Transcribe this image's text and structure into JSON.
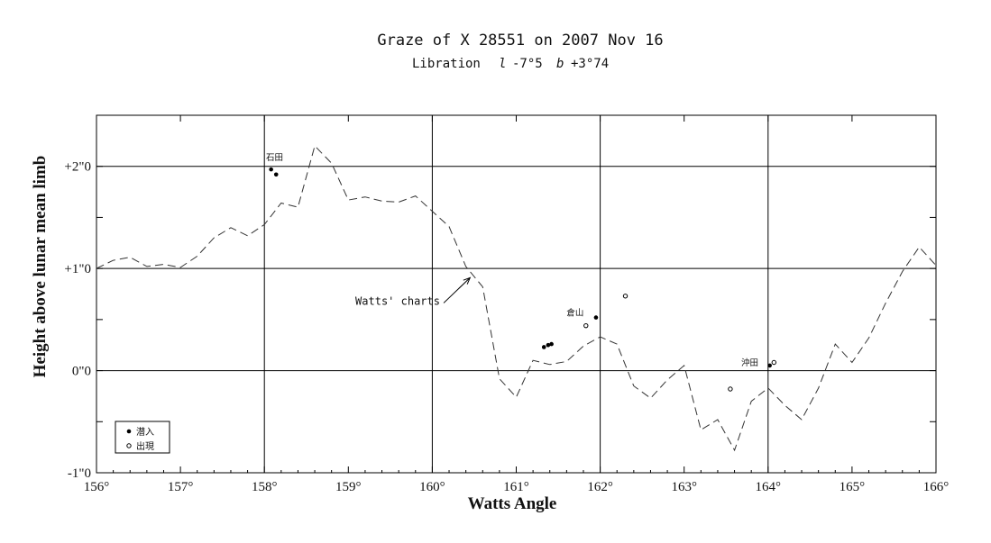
{
  "chart_data": {
    "type": "scatter",
    "title": "Graze of X 28551 on 2007 Nov 16",
    "subtitle": {
      "prefix": "Libration",
      "l_symbol": "l",
      "l_value": "-7°5",
      "b_symbol": "b",
      "b_value": "+3°74"
    },
    "xlabel": "Watts Angle",
    "ylabel": "Height above lunar mean limb",
    "xlim": [
      156,
      166
    ],
    "ylim": [
      -1,
      2.5
    ],
    "grid": true,
    "x_ticks": [
      {
        "value": 156,
        "label": "156°"
      },
      {
        "value": 157,
        "label": "157°"
      },
      {
        "value": 158,
        "label": "158°"
      },
      {
        "value": 159,
        "label": "159°"
      },
      {
        "value": 160,
        "label": "160°"
      },
      {
        "value": 161,
        "label": "161°"
      },
      {
        "value": 162,
        "label": "162°"
      },
      {
        "value": 163,
        "label": "163°"
      },
      {
        "value": 164,
        "label": "164°"
      },
      {
        "value": 165,
        "label": "165°"
      },
      {
        "value": 166,
        "label": "166°"
      }
    ],
    "y_ticks": [
      {
        "value": 2,
        "label": "+2\"0"
      },
      {
        "value": 1,
        "label": "+1\"0"
      },
      {
        "value": 0,
        "label": "0\"0"
      },
      {
        "value": -1,
        "label": "-1\"0"
      }
    ],
    "series": [
      {
        "name": "Watts' charts",
        "style": "dashed",
        "color": "#333333",
        "points": [
          [
            156.0,
            1.0
          ],
          [
            156.2,
            1.08
          ],
          [
            156.4,
            1.11
          ],
          [
            156.6,
            1.02
          ],
          [
            156.8,
            1.04
          ],
          [
            157.0,
            1.01
          ],
          [
            157.2,
            1.12
          ],
          [
            157.4,
            1.3
          ],
          [
            157.6,
            1.4
          ],
          [
            157.8,
            1.32
          ],
          [
            158.0,
            1.43
          ],
          [
            158.2,
            1.64
          ],
          [
            158.4,
            1.6
          ],
          [
            158.6,
            2.2
          ],
          [
            158.8,
            2.03
          ],
          [
            159.0,
            1.67
          ],
          [
            159.2,
            1.7
          ],
          [
            159.4,
            1.66
          ],
          [
            159.6,
            1.65
          ],
          [
            159.8,
            1.71
          ],
          [
            160.0,
            1.56
          ],
          [
            160.2,
            1.41
          ],
          [
            160.4,
            1.02
          ],
          [
            160.6,
            0.82
          ],
          [
            160.8,
            -0.08
          ],
          [
            161.0,
            -0.26
          ],
          [
            161.2,
            0.1
          ],
          [
            161.4,
            0.06
          ],
          [
            161.6,
            0.09
          ],
          [
            161.8,
            0.24
          ],
          [
            162.0,
            0.33
          ],
          [
            162.2,
            0.26
          ],
          [
            162.4,
            -0.15
          ],
          [
            162.6,
            -0.27
          ],
          [
            162.8,
            -0.09
          ],
          [
            163.0,
            0.05
          ],
          [
            163.2,
            -0.58
          ],
          [
            163.4,
            -0.48
          ],
          [
            163.6,
            -0.78
          ],
          [
            163.8,
            -0.3
          ],
          [
            164.0,
            -0.17
          ],
          [
            164.2,
            -0.34
          ],
          [
            164.4,
            -0.48
          ],
          [
            164.6,
            -0.17
          ],
          [
            164.8,
            0.26
          ],
          [
            165.0,
            0.08
          ],
          [
            165.2,
            0.32
          ],
          [
            165.4,
            0.66
          ],
          [
            165.6,
            0.97
          ],
          [
            165.8,
            1.21
          ],
          [
            166.0,
            1.03
          ]
        ]
      },
      {
        "name": "潜入",
        "marker": "filled",
        "points": [
          [
            158.08,
            1.97
          ],
          [
            158.14,
            1.92
          ],
          [
            161.33,
            0.23
          ],
          [
            161.38,
            0.25
          ],
          [
            161.42,
            0.26
          ],
          [
            161.95,
            0.52
          ],
          [
            164.02,
            0.05
          ]
        ]
      },
      {
        "name": "出現",
        "marker": "open",
        "points": [
          [
            161.83,
            0.44
          ],
          [
            162.3,
            0.73
          ],
          [
            163.55,
            -0.18
          ],
          [
            164.07,
            0.08
          ]
        ]
      }
    ],
    "annotations": [
      {
        "text": "Watts' charts",
        "x": 160.05,
        "y": 0.68,
        "arrow_to": [
          160.45,
          0.91
        ]
      },
      {
        "text": "石田",
        "x": 158.02,
        "y": 2.06
      },
      {
        "text": "倉山",
        "x": 161.6,
        "y": 0.54
      },
      {
        "text": "沖田",
        "x": 163.68,
        "y": 0.05
      }
    ],
    "legend": {
      "position": "bottom-left",
      "entries": [
        {
          "label": "潜入",
          "marker": "filled"
        },
        {
          "label": "出現",
          "marker": "open"
        }
      ]
    }
  }
}
